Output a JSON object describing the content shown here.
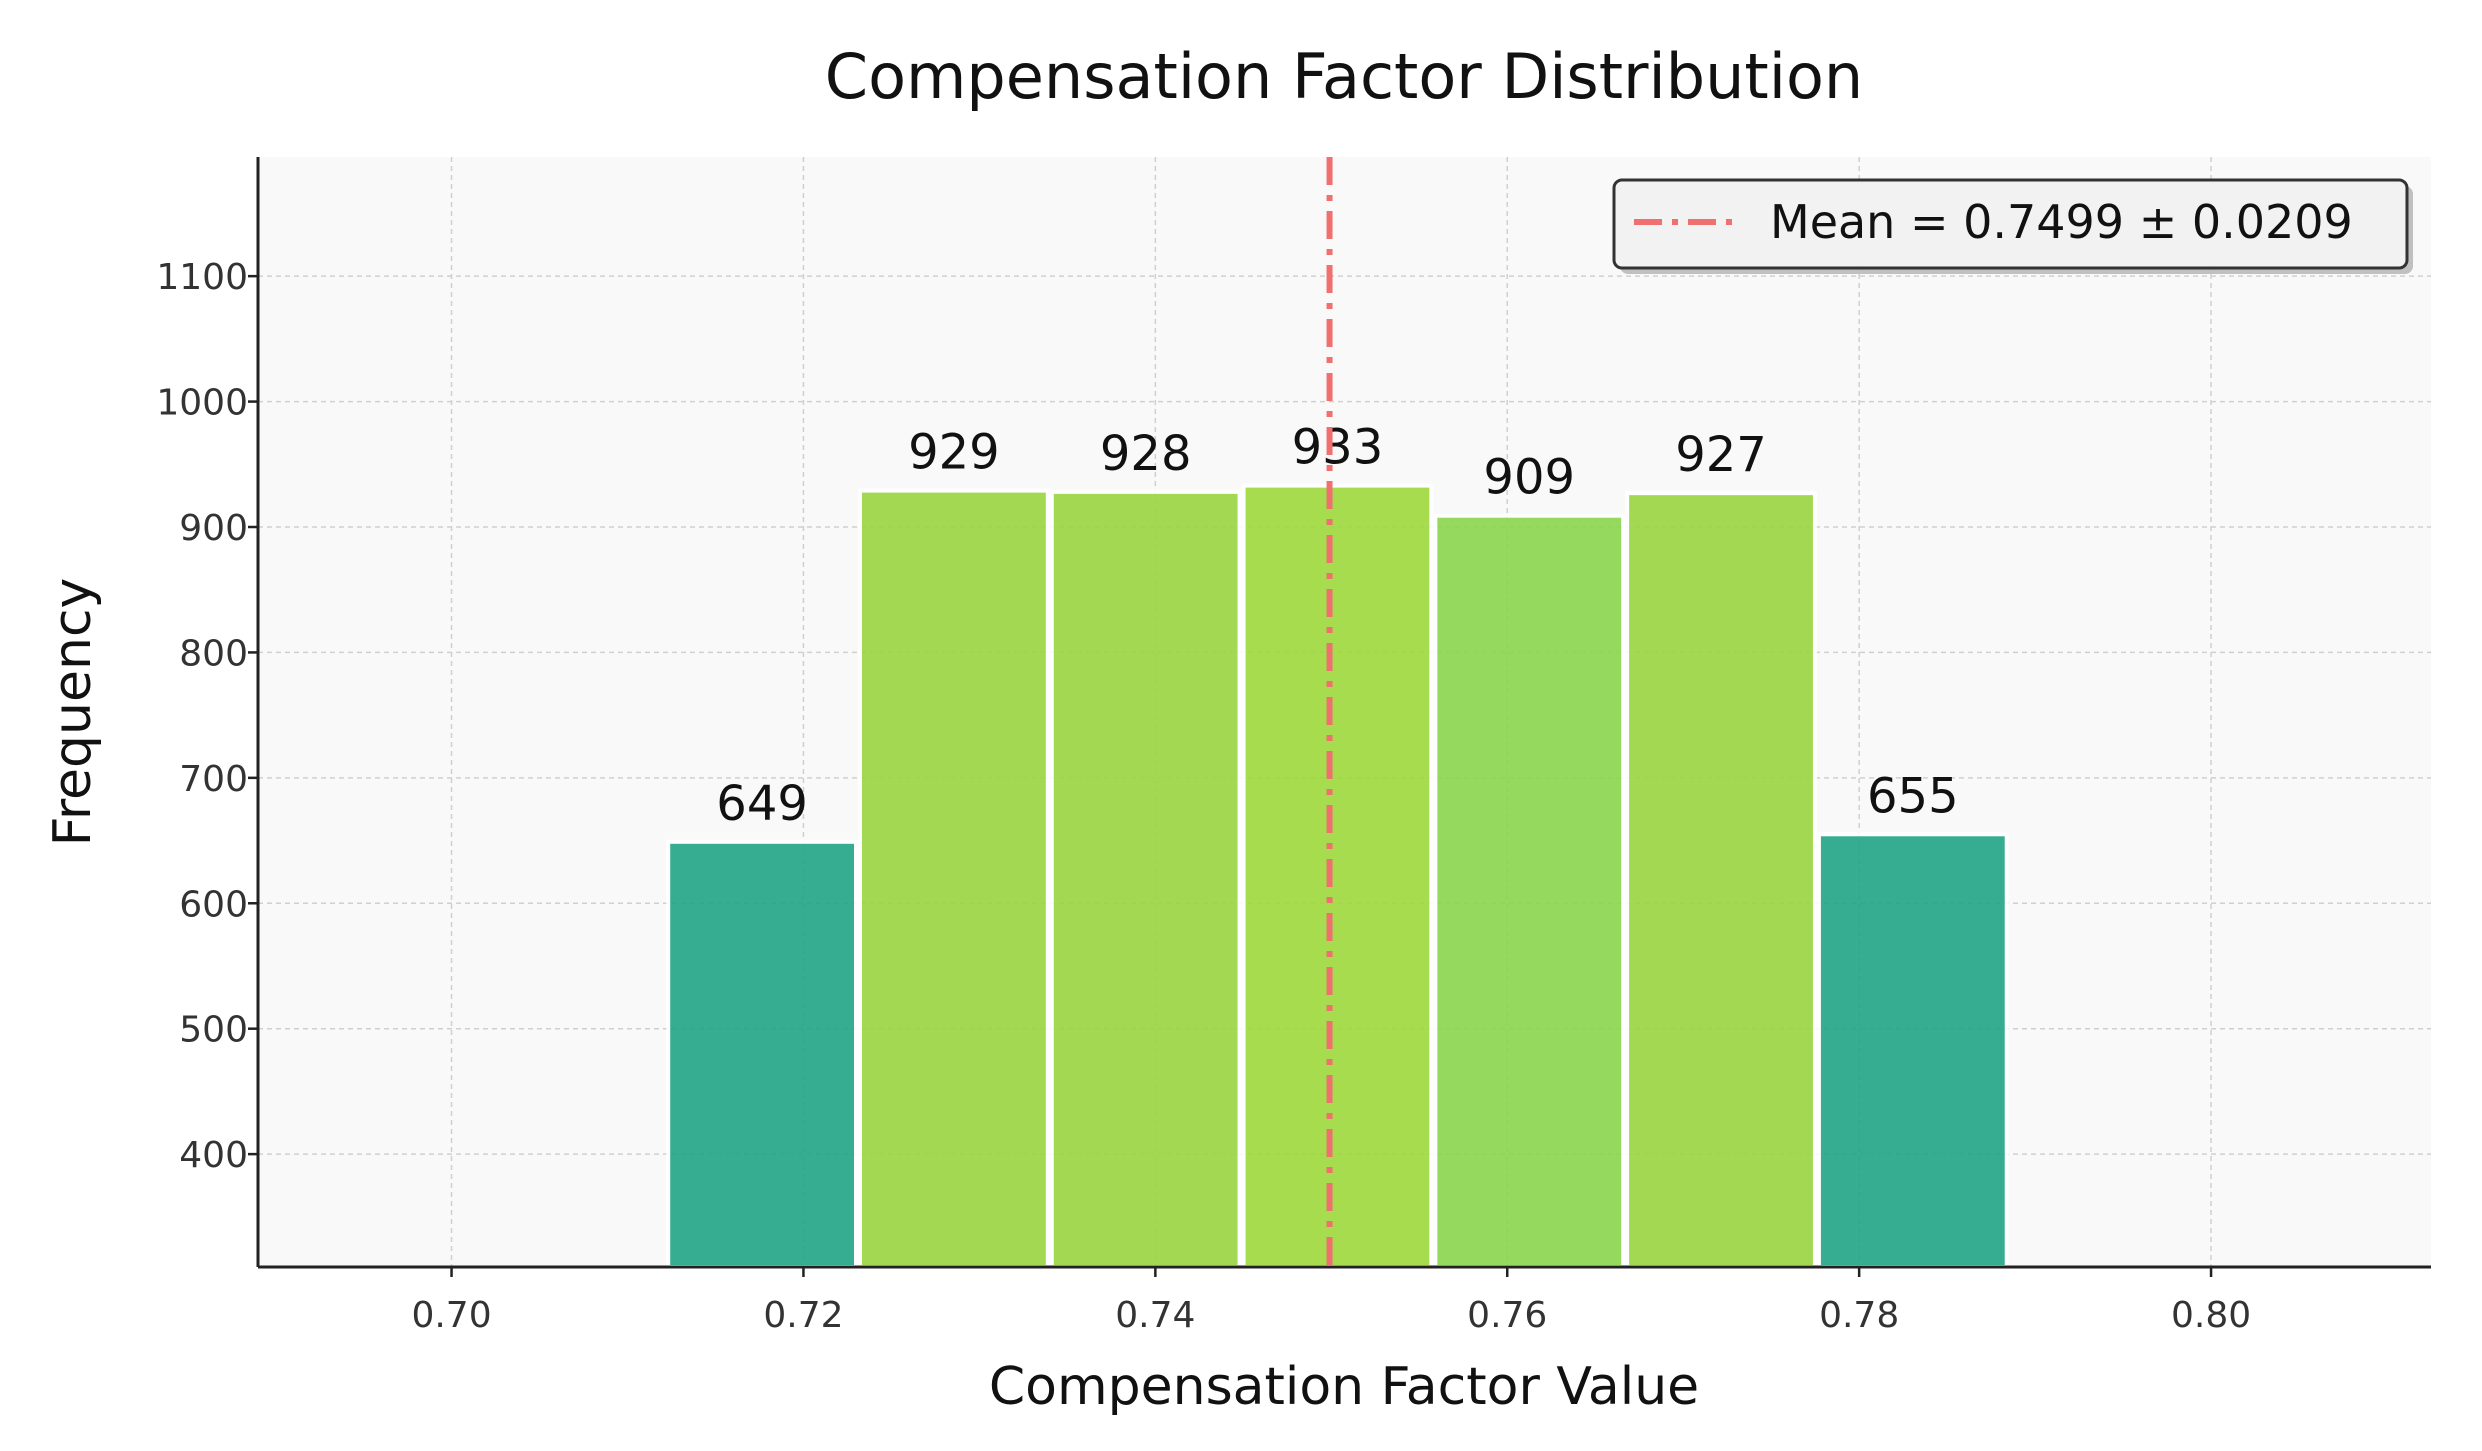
{
  "chart_data": {
    "type": "bar",
    "title": "Compensation Factor Distribution",
    "xlabel": "Compensation Factor Value",
    "ylabel": "Frequency",
    "xlim": [
      0.689,
      0.8125
    ],
    "ylim": [
      310,
      1195
    ],
    "xticks": [
      0.7,
      0.72,
      0.74,
      0.76,
      0.78,
      0.8
    ],
    "xtick_labels": [
      "0.70",
      "0.72",
      "0.74",
      "0.76",
      "0.78",
      "0.80"
    ],
    "yticks": [
      400,
      500,
      600,
      700,
      800,
      900,
      1000,
      1100
    ],
    "ytick_labels": [
      "400",
      "500",
      "600",
      "700",
      "800",
      "900",
      "1000",
      "1100"
    ],
    "grid": true,
    "bin_width": 0.0109,
    "bins": [
      {
        "start": 0.7122,
        "end": 0.7231,
        "value": 649,
        "label": "649",
        "color": "#21a585"
      },
      {
        "start": 0.7231,
        "end": 0.734,
        "value": 929,
        "label": "929",
        "color": "#9ad641"
      },
      {
        "start": 0.734,
        "end": 0.7449,
        "value": 928,
        "label": "928",
        "color": "#9ad641"
      },
      {
        "start": 0.7449,
        "end": 0.7558,
        "value": 933,
        "label": "933",
        "color": "#9ed93b"
      },
      {
        "start": 0.7558,
        "end": 0.7667,
        "value": 909,
        "label": "909",
        "color": "#8cd64f"
      },
      {
        "start": 0.7667,
        "end": 0.7776,
        "value": 927,
        "label": "927",
        "color": "#9ad641"
      },
      {
        "start": 0.7776,
        "end": 0.7885,
        "value": 655,
        "label": "655",
        "color": "#21a585"
      }
    ],
    "mean_line": {
      "x": 0.7499,
      "color": "#f07070",
      "style": "dash-dot"
    },
    "legend": {
      "placement": "top-right",
      "entries": [
        {
          "label": "Mean = 0.7499 ± 0.0209",
          "color": "#f07070"
        }
      ]
    }
  }
}
